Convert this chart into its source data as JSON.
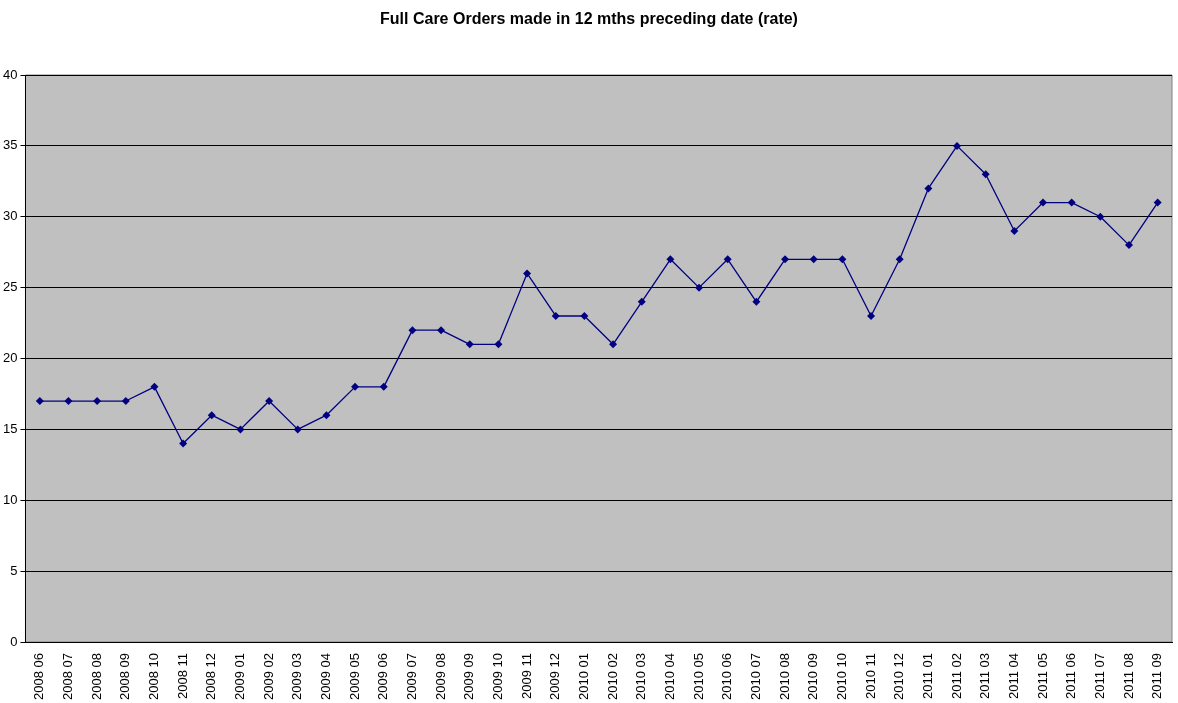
{
  "chart_data": {
    "type": "line",
    "title": "Full Care Orders made in 12 mths preceding date (rate)",
    "categories": [
      "2008 06",
      "2008 07",
      "2008 08",
      "2008 09",
      "2008 10",
      "2008 11",
      "2008 12",
      "2009 01",
      "2009 02",
      "2009 03",
      "2009 04",
      "2009 05",
      "2009 06",
      "2009 07",
      "2009 08",
      "2009 09",
      "2009 10",
      "2009 11",
      "2009 12",
      "2010 01",
      "2010 02",
      "2010 03",
      "2010 04",
      "2010 05",
      "2010 06",
      "2010 07",
      "2010 08",
      "2010 09",
      "2010 10",
      "2010 11",
      "2010 12",
      "2011 01",
      "2011 02",
      "2011 03",
      "2011 04",
      "2011 05",
      "2011 06",
      "2011 07",
      "2011 08",
      "2011 09"
    ],
    "series": [
      {
        "color": "#000080",
        "values": [
          17,
          17,
          17,
          17,
          18,
          14,
          16,
          15,
          17,
          15,
          16,
          18,
          18,
          22,
          22,
          21,
          21,
          26,
          23,
          23,
          21,
          24,
          27,
          25,
          27,
          24,
          27,
          27,
          27,
          23,
          27,
          32,
          35,
          33,
          29,
          31,
          31,
          30,
          28,
          31
        ]
      }
    ],
    "ylim": [
      0,
      40
    ],
    "yticks": [
      0,
      5,
      10,
      15,
      20,
      25,
      30,
      35,
      40
    ],
    "grid": "y",
    "legend": false,
    "marker": "diamond",
    "line_style": "solid"
  }
}
